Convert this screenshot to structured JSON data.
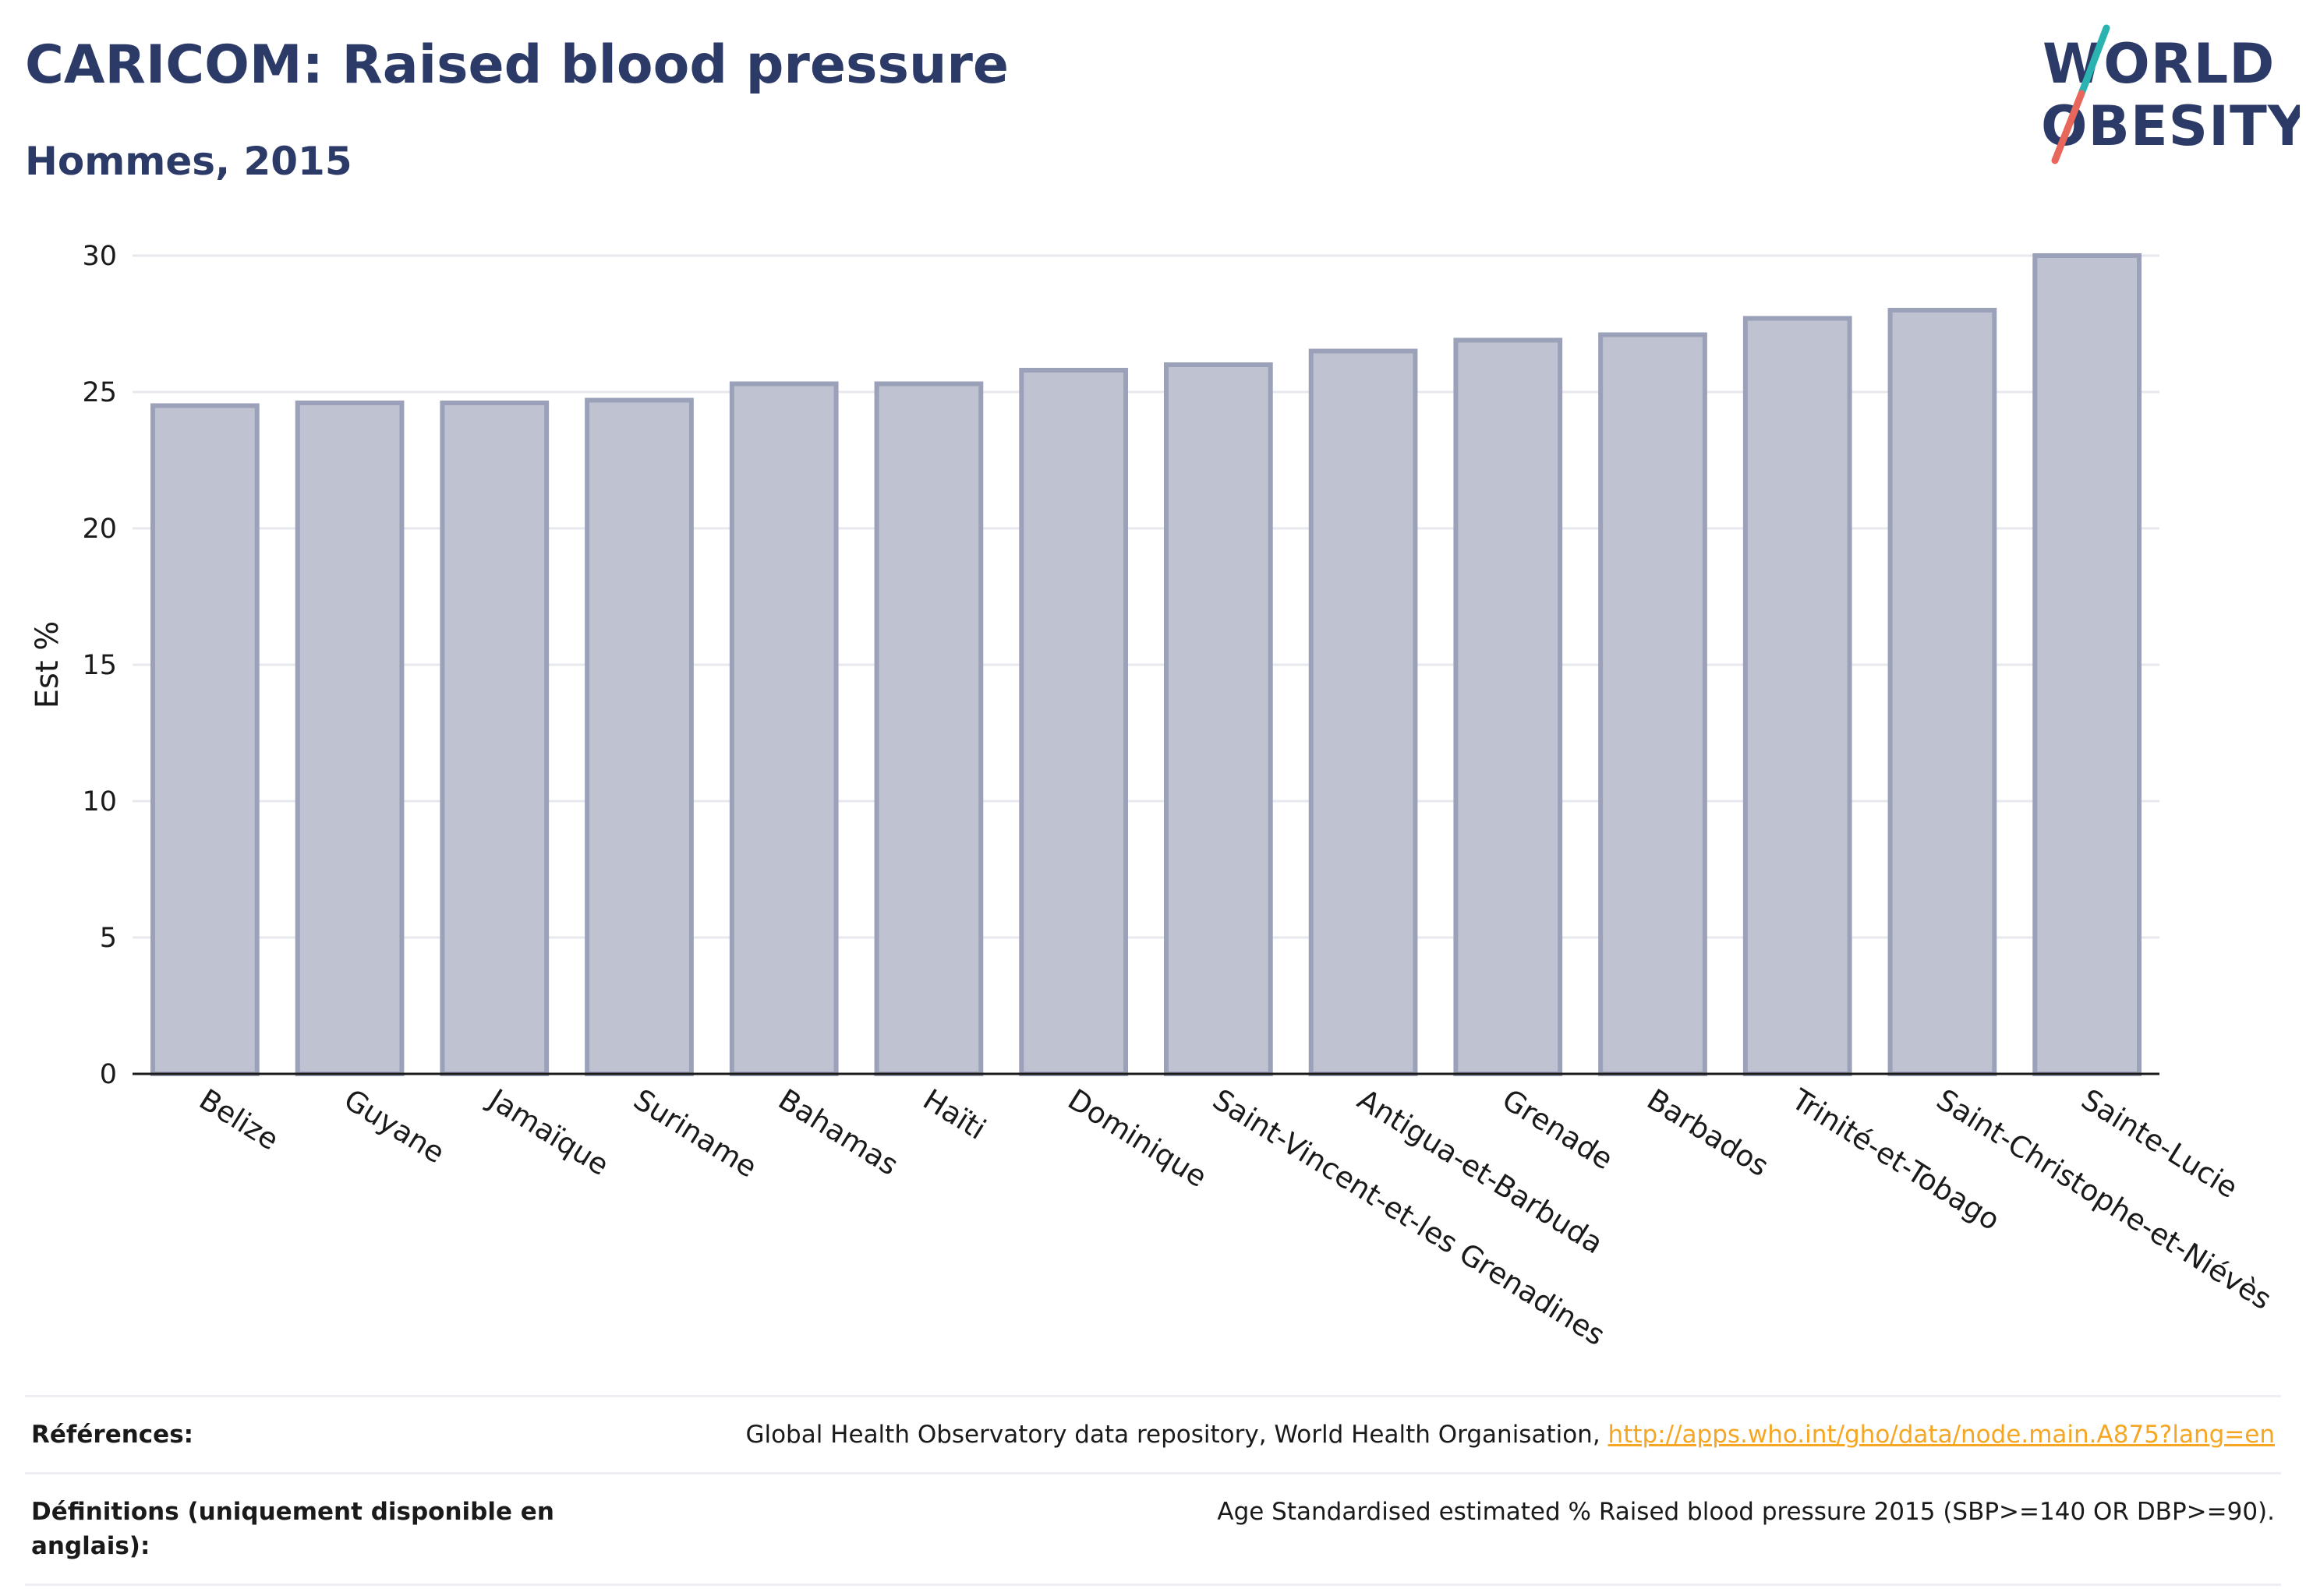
{
  "header": {
    "title": "CARICOM: Raised blood pressure",
    "subtitle": "Hommes, 2015"
  },
  "logo": {
    "line1": "WORLD",
    "line2": "OBESITY",
    "colors": {
      "text": "#2b3a67",
      "slash_top": "#2ab3b1",
      "slash_bottom": "#e8665a"
    }
  },
  "colors": {
    "bar_fill": "#bfc3d1",
    "bar_stroke": "#9aa1b8",
    "grid": "#e6e8ee",
    "axis": "#1a1a1a",
    "title": "#2b3a67",
    "link": "#f5a623"
  },
  "chart_data": {
    "type": "bar",
    "title": "",
    "xlabel": "",
    "ylabel": "Est %",
    "ylim": [
      0,
      30
    ],
    "yticks": [
      0,
      5,
      10,
      15,
      20,
      25,
      30
    ],
    "grid": true,
    "categories": [
      "Belize",
      "Guyane",
      "Jamaïque",
      "Suriname",
      "Bahamas",
      "Haïti",
      "Dominique",
      "Saint-Vincent-et-les Grenadines",
      "Antigua-et-Barbuda",
      "Grenade",
      "Barbados",
      "Trinité-et-Tobago",
      "Saint-Christophe-et-Niévès",
      "Sainte-Lucie"
    ],
    "values": [
      24.5,
      24.6,
      24.6,
      24.7,
      25.3,
      25.3,
      25.8,
      26.0,
      26.5,
      26.9,
      27.1,
      27.7,
      28.0,
      30.0
    ]
  },
  "footer": {
    "references_label": "Références:",
    "references_text": "Global Health Observatory data repository, World Health Organisation, ",
    "references_link": "http://apps.who.int/gho/data/node.main.A875?lang=en",
    "definitions_label": "Définitions (uniquement disponible en anglais):",
    "definitions_text": "Age Standardised estimated % Raised blood pressure 2015 (SBP>=140 OR DBP>=90)."
  }
}
